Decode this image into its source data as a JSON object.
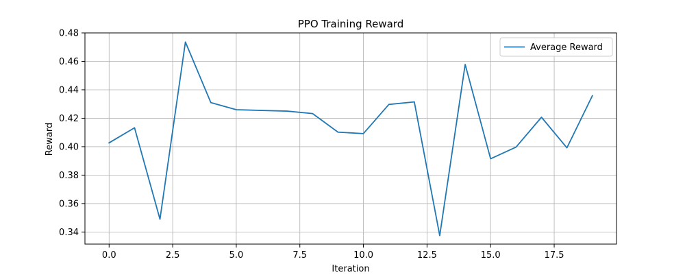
{
  "chart_data": {
    "type": "line",
    "title": "PPO Training Reward",
    "xlabel": "Iteration",
    "ylabel": "Reward",
    "xlim": [
      -0.95,
      19.95
    ],
    "ylim": [
      0.3315,
      0.48
    ],
    "xticks": [
      0.0,
      2.5,
      5.0,
      7.5,
      10.0,
      12.5,
      15.0,
      17.5
    ],
    "xtick_labels": [
      "0.0",
      "2.5",
      "5.0",
      "7.5",
      "10.0",
      "12.5",
      "15.0",
      "17.5"
    ],
    "yticks": [
      0.34,
      0.36,
      0.38,
      0.4,
      0.42,
      0.44,
      0.46,
      0.48
    ],
    "ytick_labels": [
      "0.34",
      "0.36",
      "0.38",
      "0.40",
      "0.42",
      "0.44",
      "0.46",
      "0.48"
    ],
    "grid": true,
    "legend_position": "top-right",
    "x": [
      0,
      1,
      2,
      3,
      4,
      5,
      6,
      7,
      8,
      9,
      10,
      11,
      12,
      13,
      14,
      15,
      16,
      17,
      18,
      19
    ],
    "series": [
      {
        "name": "Average Reward",
        "color": "#1f77b4",
        "values": [
          0.4027,
          0.4133,
          0.349,
          0.4736,
          0.431,
          0.426,
          0.4255,
          0.425,
          0.4233,
          0.4102,
          0.4092,
          0.4297,
          0.4315,
          0.3375,
          0.4578,
          0.3915,
          0.3997,
          0.4207,
          0.3992,
          0.4358
        ]
      }
    ]
  }
}
